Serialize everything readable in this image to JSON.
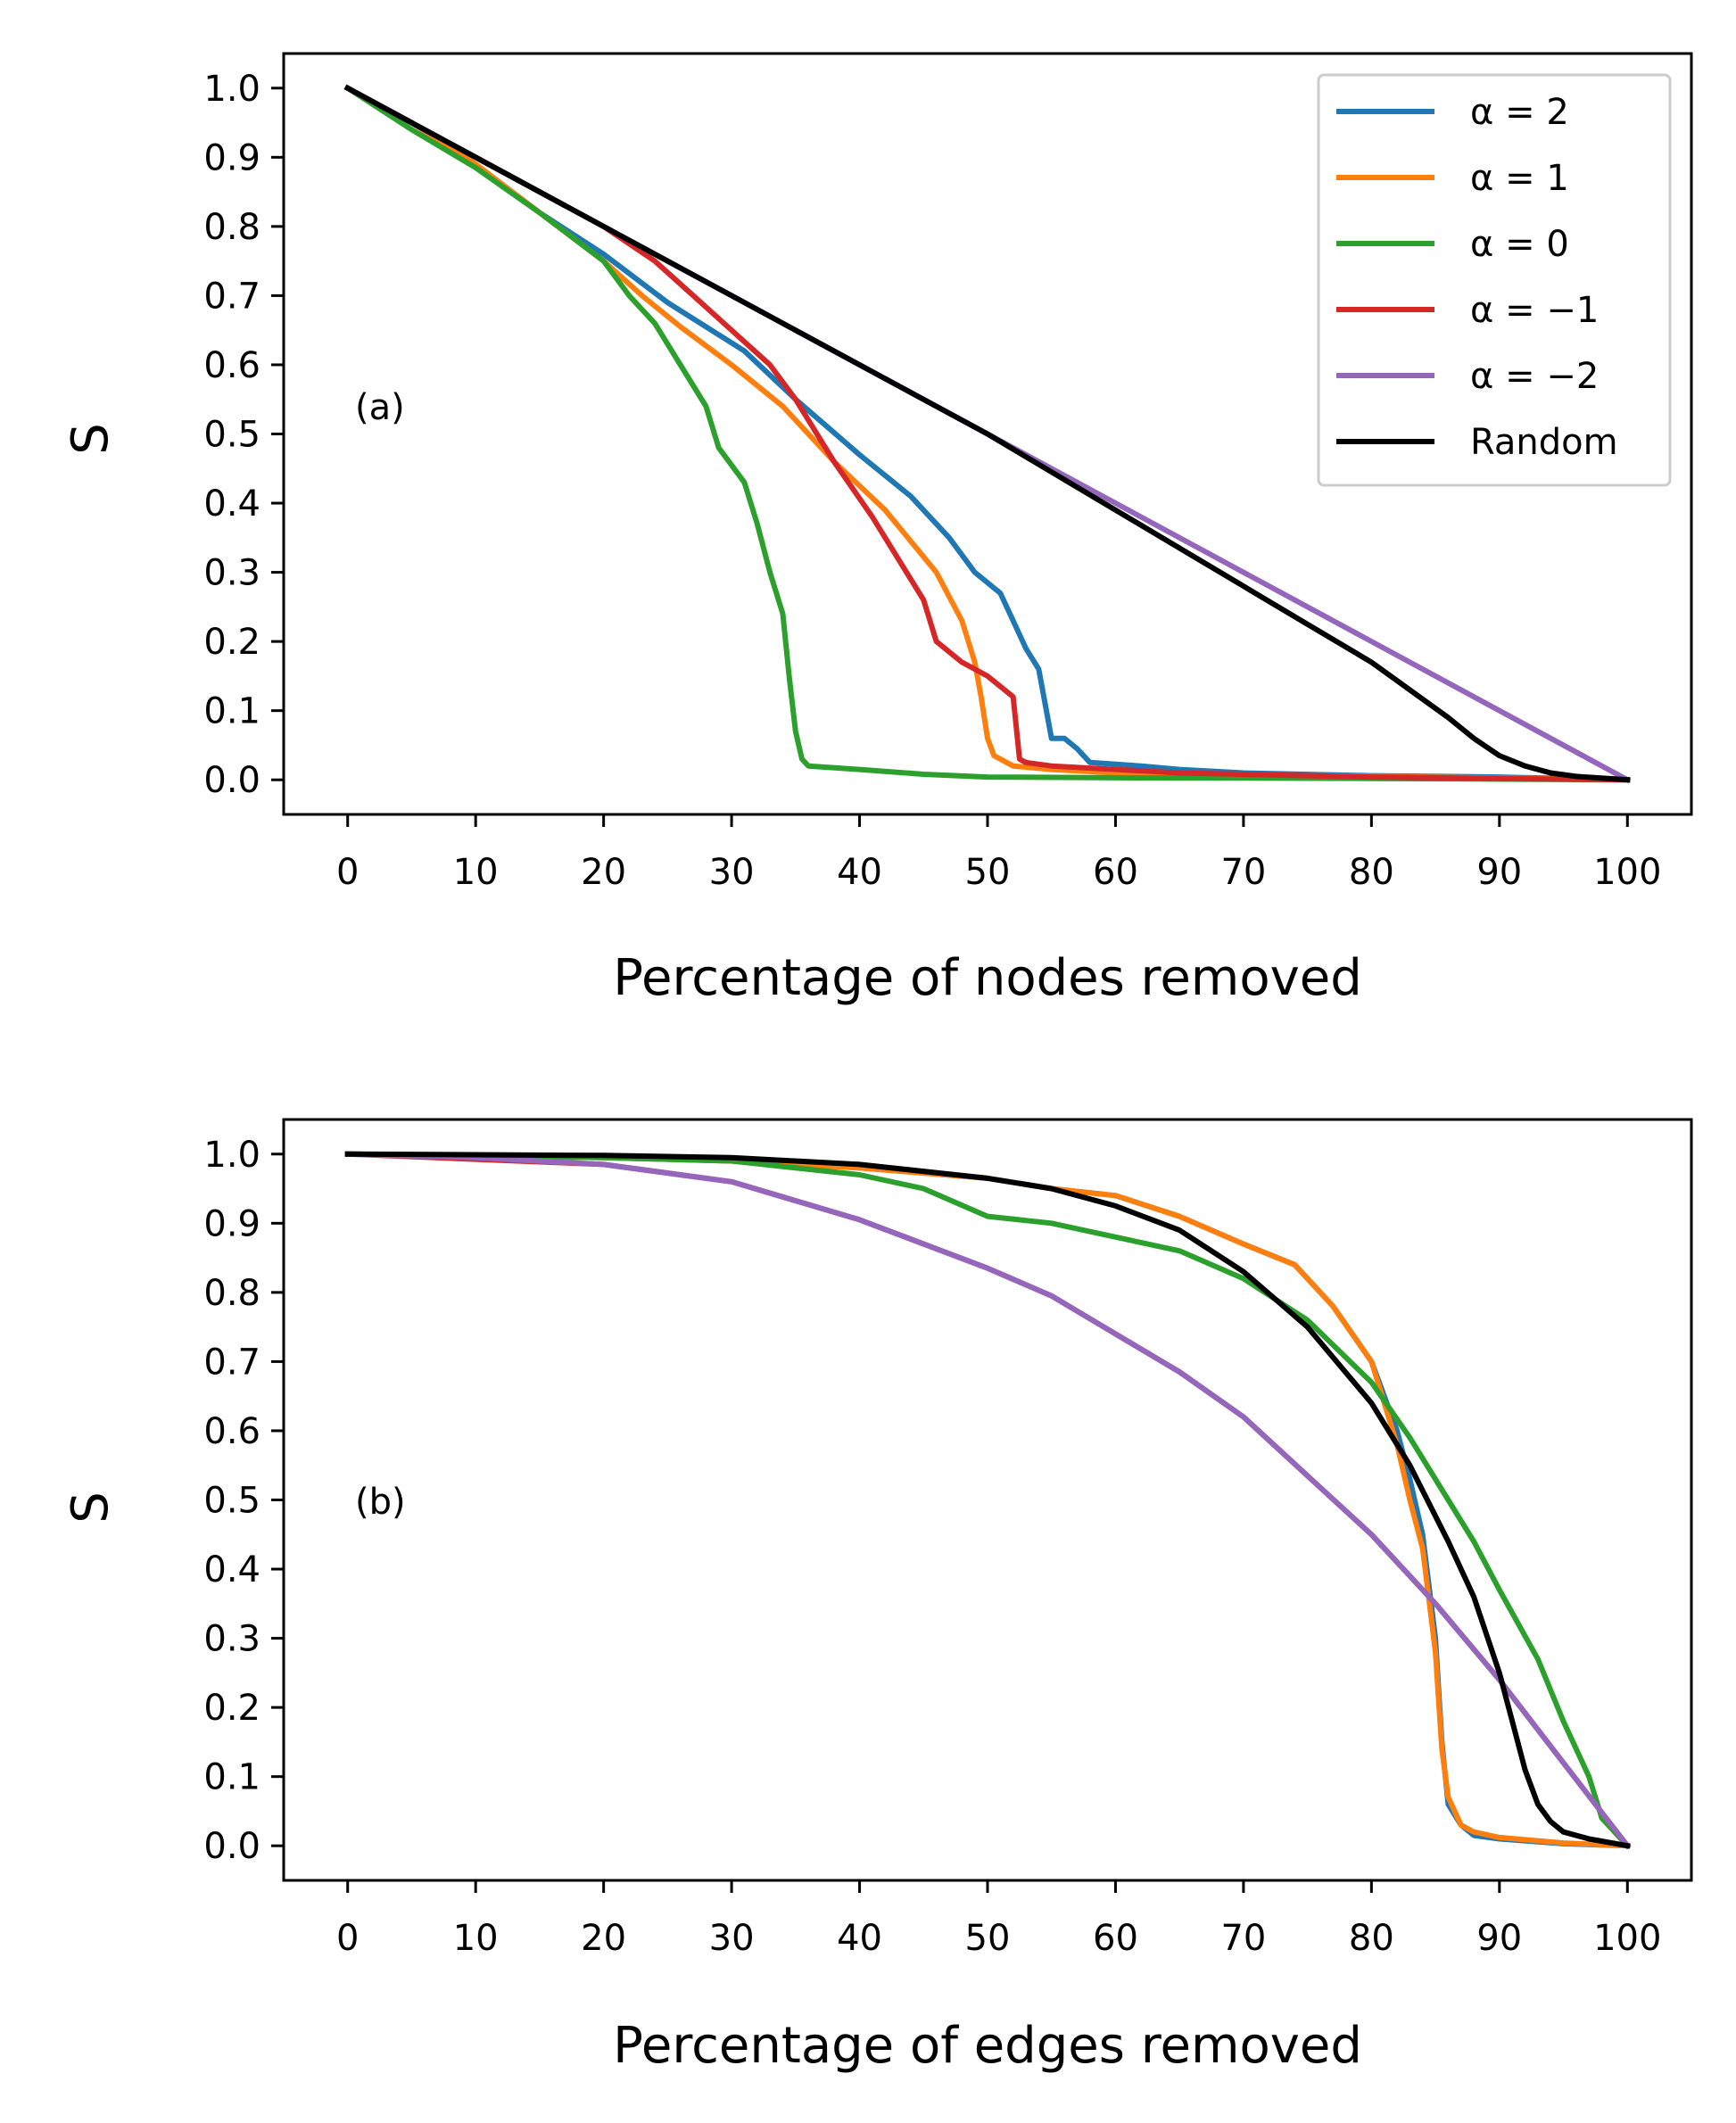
{
  "colors": {
    "alpha_2": "#1f77b4",
    "alpha_1": "#ff7f0e",
    "alpha_0": "#2ca02c",
    "alpha_m1": "#d62728",
    "alpha_m2": "#9467bd",
    "random": "#000000"
  },
  "chart_data": [
    {
      "type": "line",
      "panel_label": "(a)",
      "xlabel": "Percentage of nodes removed",
      "ylabel": "S",
      "xlim": [
        -5,
        105
      ],
      "ylim": [
        -0.05,
        1.05
      ],
      "xticks": [
        "0",
        "10",
        "20",
        "30",
        "40",
        "50",
        "60",
        "70",
        "80",
        "90",
        "100"
      ],
      "yticks": [
        "0.0",
        "0.1",
        "0.2",
        "0.3",
        "0.4",
        "0.5",
        "0.6",
        "0.7",
        "0.8",
        "0.9",
        "1.0"
      ],
      "legend": {
        "placement": "top-right",
        "entries": [
          {
            "label": "α = 2",
            "color_key": "alpha_2"
          },
          {
            "label": "α = 1",
            "color_key": "alpha_1"
          },
          {
            "label": "α = 0",
            "color_key": "alpha_0"
          },
          {
            "label": "α = −1",
            "color_key": "alpha_m1"
          },
          {
            "label": "α = −2",
            "color_key": "alpha_m2"
          },
          {
            "label": "Random",
            "color_key": "random"
          }
        ]
      },
      "series": [
        {
          "name": "α = 2",
          "color_key": "alpha_2",
          "points": [
            [
              0,
              1.0
            ],
            [
              5,
              0.95
            ],
            [
              10,
              0.89
            ],
            [
              15,
              0.82
            ],
            [
              20,
              0.76
            ],
            [
              25,
              0.69
            ],
            [
              28,
              0.655
            ],
            [
              31,
              0.62
            ],
            [
              35,
              0.55
            ],
            [
              40,
              0.47
            ],
            [
              44,
              0.41
            ],
            [
              47,
              0.35
            ],
            [
              49,
              0.3
            ],
            [
              51,
              0.27
            ],
            [
              52,
              0.23
            ],
            [
              53,
              0.19
            ],
            [
              54,
              0.16
            ],
            [
              55,
              0.06
            ],
            [
              56,
              0.06
            ],
            [
              57,
              0.045
            ],
            [
              58,
              0.025
            ],
            [
              62,
              0.02
            ],
            [
              65,
              0.015
            ],
            [
              70,
              0.01
            ],
            [
              80,
              0.006
            ],
            [
              90,
              0.004
            ],
            [
              100,
              0.0
            ]
          ]
        },
        {
          "name": "α = 1",
          "color_key": "alpha_1",
          "points": [
            [
              0,
              1.0
            ],
            [
              5,
              0.95
            ],
            [
              10,
              0.89
            ],
            [
              15,
              0.82
            ],
            [
              20,
              0.75
            ],
            [
              23,
              0.7
            ],
            [
              26,
              0.655
            ],
            [
              30,
              0.6
            ],
            [
              34,
              0.54
            ],
            [
              38,
              0.46
            ],
            [
              42,
              0.39
            ],
            [
              46,
              0.3
            ],
            [
              48,
              0.23
            ],
            [
              49,
              0.17
            ],
            [
              49.5,
              0.12
            ],
            [
              50,
              0.06
            ],
            [
              50.5,
              0.035
            ],
            [
              52,
              0.02
            ],
            [
              55,
              0.015
            ],
            [
              60,
              0.01
            ],
            [
              70,
              0.007
            ],
            [
              80,
              0.005
            ],
            [
              100,
              0.0
            ]
          ]
        },
        {
          "name": "α = 0",
          "color_key": "alpha_0",
          "points": [
            [
              0,
              1.0
            ],
            [
              5,
              0.94
            ],
            [
              10,
              0.885
            ],
            [
              15,
              0.82
            ],
            [
              20,
              0.75
            ],
            [
              22,
              0.7
            ],
            [
              24,
              0.66
            ],
            [
              26,
              0.6
            ],
            [
              28,
              0.54
            ],
            [
              29,
              0.48
            ],
            [
              31,
              0.43
            ],
            [
              32,
              0.37
            ],
            [
              33,
              0.3
            ],
            [
              34,
              0.24
            ],
            [
              34.5,
              0.15
            ],
            [
              35,
              0.07
            ],
            [
              35.5,
              0.03
            ],
            [
              36,
              0.02
            ],
            [
              40,
              0.015
            ],
            [
              45,
              0.008
            ],
            [
              50,
              0.004
            ],
            [
              60,
              0.003
            ],
            [
              80,
              0.002
            ],
            [
              100,
              0.0
            ]
          ]
        },
        {
          "name": "α = −1",
          "color_key": "alpha_m1",
          "points": [
            [
              0,
              1.0
            ],
            [
              10,
              0.9
            ],
            [
              15,
              0.85
            ],
            [
              20,
              0.8
            ],
            [
              24,
              0.75
            ],
            [
              27,
              0.7
            ],
            [
              30,
              0.65
            ],
            [
              33,
              0.6
            ],
            [
              35,
              0.55
            ],
            [
              38,
              0.46
            ],
            [
              41,
              0.38
            ],
            [
              43,
              0.32
            ],
            [
              45,
              0.26
            ],
            [
              46,
              0.2
            ],
            [
              48,
              0.17
            ],
            [
              50,
              0.15
            ],
            [
              52,
              0.12
            ],
            [
              52.5,
              0.03
            ],
            [
              53,
              0.025
            ],
            [
              55,
              0.02
            ],
            [
              60,
              0.015
            ],
            [
              65,
              0.01
            ],
            [
              80,
              0.004
            ],
            [
              90,
              0.002
            ],
            [
              100,
              0.0
            ]
          ]
        },
        {
          "name": "α = −2",
          "color_key": "alpha_m2",
          "points": [
            [
              0,
              1.0
            ],
            [
              100,
              0.0
            ]
          ]
        },
        {
          "name": "Random",
          "color_key": "random",
          "points": [
            [
              0,
              1.0
            ],
            [
              10,
              0.9
            ],
            [
              20,
              0.8
            ],
            [
              30,
              0.7
            ],
            [
              40,
              0.6
            ],
            [
              50,
              0.5
            ],
            [
              60,
              0.39
            ],
            [
              70,
              0.28
            ],
            [
              75,
              0.225
            ],
            [
              80,
              0.17
            ],
            [
              83,
              0.13
            ],
            [
              86,
              0.09
            ],
            [
              88,
              0.06
            ],
            [
              90,
              0.035
            ],
            [
              92,
              0.02
            ],
            [
              94,
              0.01
            ],
            [
              96,
              0.005
            ],
            [
              100,
              0.0
            ]
          ]
        }
      ]
    },
    {
      "type": "line",
      "panel_label": "(b)",
      "xlabel": "Percentage of edges removed",
      "ylabel": "S",
      "xlim": [
        -5,
        105
      ],
      "ylim": [
        -0.05,
        1.05
      ],
      "xticks": [
        "0",
        "10",
        "20",
        "30",
        "40",
        "50",
        "60",
        "70",
        "80",
        "90",
        "100"
      ],
      "yticks": [
        "0.0",
        "0.1",
        "0.2",
        "0.3",
        "0.4",
        "0.5",
        "0.6",
        "0.7",
        "0.8",
        "0.9",
        "1.0"
      ],
      "series": [
        {
          "name": "α = 2",
          "color_key": "alpha_2",
          "points": [
            [
              0,
              1.0
            ],
            [
              20,
              0.995
            ],
            [
              30,
              0.99
            ],
            [
              40,
              0.98
            ],
            [
              50,
              0.965
            ],
            [
              55,
              0.95
            ],
            [
              60,
              0.94
            ],
            [
              65,
              0.91
            ],
            [
              70,
              0.87
            ],
            [
              74,
              0.84
            ],
            [
              77,
              0.78
            ],
            [
              80,
              0.7
            ],
            [
              82,
              0.6
            ],
            [
              83,
              0.53
            ],
            [
              84,
              0.45
            ],
            [
              85,
              0.3
            ],
            [
              85.5,
              0.15
            ],
            [
              86,
              0.06
            ],
            [
              87,
              0.03
            ],
            [
              88,
              0.015
            ],
            [
              90,
              0.01
            ],
            [
              95,
              0.003
            ],
            [
              100,
              0.0
            ]
          ]
        },
        {
          "name": "α = 1",
          "color_key": "alpha_1",
          "points": [
            [
              0,
              1.0
            ],
            [
              20,
              0.995
            ],
            [
              30,
              0.99
            ],
            [
              40,
              0.98
            ],
            [
              50,
              0.965
            ],
            [
              55,
              0.95
            ],
            [
              60,
              0.94
            ],
            [
              65,
              0.91
            ],
            [
              70,
              0.87
            ],
            [
              74,
              0.84
            ],
            [
              77,
              0.78
            ],
            [
              80,
              0.7
            ],
            [
              82,
              0.58
            ],
            [
              83,
              0.5
            ],
            [
              84,
              0.43
            ],
            [
              85,
              0.28
            ],
            [
              85.5,
              0.14
            ],
            [
              86,
              0.07
            ],
            [
              87,
              0.03
            ],
            [
              88,
              0.02
            ],
            [
              90,
              0.012
            ],
            [
              95,
              0.004
            ],
            [
              100,
              0.0
            ]
          ]
        },
        {
          "name": "α = 0",
          "color_key": "alpha_0",
          "points": [
            [
              0,
              1.0
            ],
            [
              20,
              0.995
            ],
            [
              30,
              0.99
            ],
            [
              40,
              0.97
            ],
            [
              45,
              0.95
            ],
            [
              50,
              0.91
            ],
            [
              55,
              0.9
            ],
            [
              60,
              0.88
            ],
            [
              65,
              0.86
            ],
            [
              70,
              0.82
            ],
            [
              75,
              0.76
            ],
            [
              80,
              0.67
            ],
            [
              83,
              0.59
            ],
            [
              86,
              0.5
            ],
            [
              88,
              0.44
            ],
            [
              90,
              0.37
            ],
            [
              93,
              0.27
            ],
            [
              95,
              0.18
            ],
            [
              97,
              0.1
            ],
            [
              98,
              0.04
            ],
            [
              100,
              0.0
            ]
          ]
        },
        {
          "name": "α = −1",
          "color_key": "alpha_m1",
          "points": [
            [
              0,
              1.0
            ],
            [
              20,
              0.985
            ],
            [
              30,
              0.96
            ],
            [
              40,
              0.905
            ],
            [
              50,
              0.835
            ],
            [
              55,
              0.795
            ],
            [
              60,
              0.74
            ],
            [
              65,
              0.685
            ],
            [
              70,
              0.62
            ],
            [
              75,
              0.535
            ],
            [
              80,
              0.45
            ],
            [
              85,
              0.35
            ],
            [
              90,
              0.24
            ],
            [
              95,
              0.12
            ],
            [
              100,
              0.0
            ]
          ]
        },
        {
          "name": "α = −2",
          "color_key": "alpha_m2",
          "points": [
            [
              0,
              1.0
            ],
            [
              10,
              0.995
            ],
            [
              20,
              0.985
            ],
            [
              30,
              0.96
            ],
            [
              40,
              0.905
            ],
            [
              50,
              0.835
            ],
            [
              55,
              0.795
            ],
            [
              60,
              0.74
            ],
            [
              65,
              0.685
            ],
            [
              70,
              0.62
            ],
            [
              75,
              0.535
            ],
            [
              80,
              0.45
            ],
            [
              85,
              0.35
            ],
            [
              90,
              0.24
            ],
            [
              95,
              0.12
            ],
            [
              100,
              0.0
            ]
          ]
        },
        {
          "name": "Random",
          "color_key": "random",
          "points": [
            [
              0,
              1.0
            ],
            [
              20,
              0.998
            ],
            [
              30,
              0.995
            ],
            [
              40,
              0.985
            ],
            [
              50,
              0.965
            ],
            [
              55,
              0.95
            ],
            [
              60,
              0.925
            ],
            [
              65,
              0.89
            ],
            [
              70,
              0.83
            ],
            [
              75,
              0.75
            ],
            [
              80,
              0.64
            ],
            [
              83,
              0.55
            ],
            [
              86,
              0.44
            ],
            [
              88,
              0.36
            ],
            [
              90,
              0.25
            ],
            [
              91,
              0.18
            ],
            [
              92,
              0.11
            ],
            [
              93,
              0.06
            ],
            [
              94,
              0.035
            ],
            [
              95,
              0.02
            ],
            [
              97,
              0.01
            ],
            [
              100,
              0.0
            ]
          ]
        }
      ]
    }
  ]
}
